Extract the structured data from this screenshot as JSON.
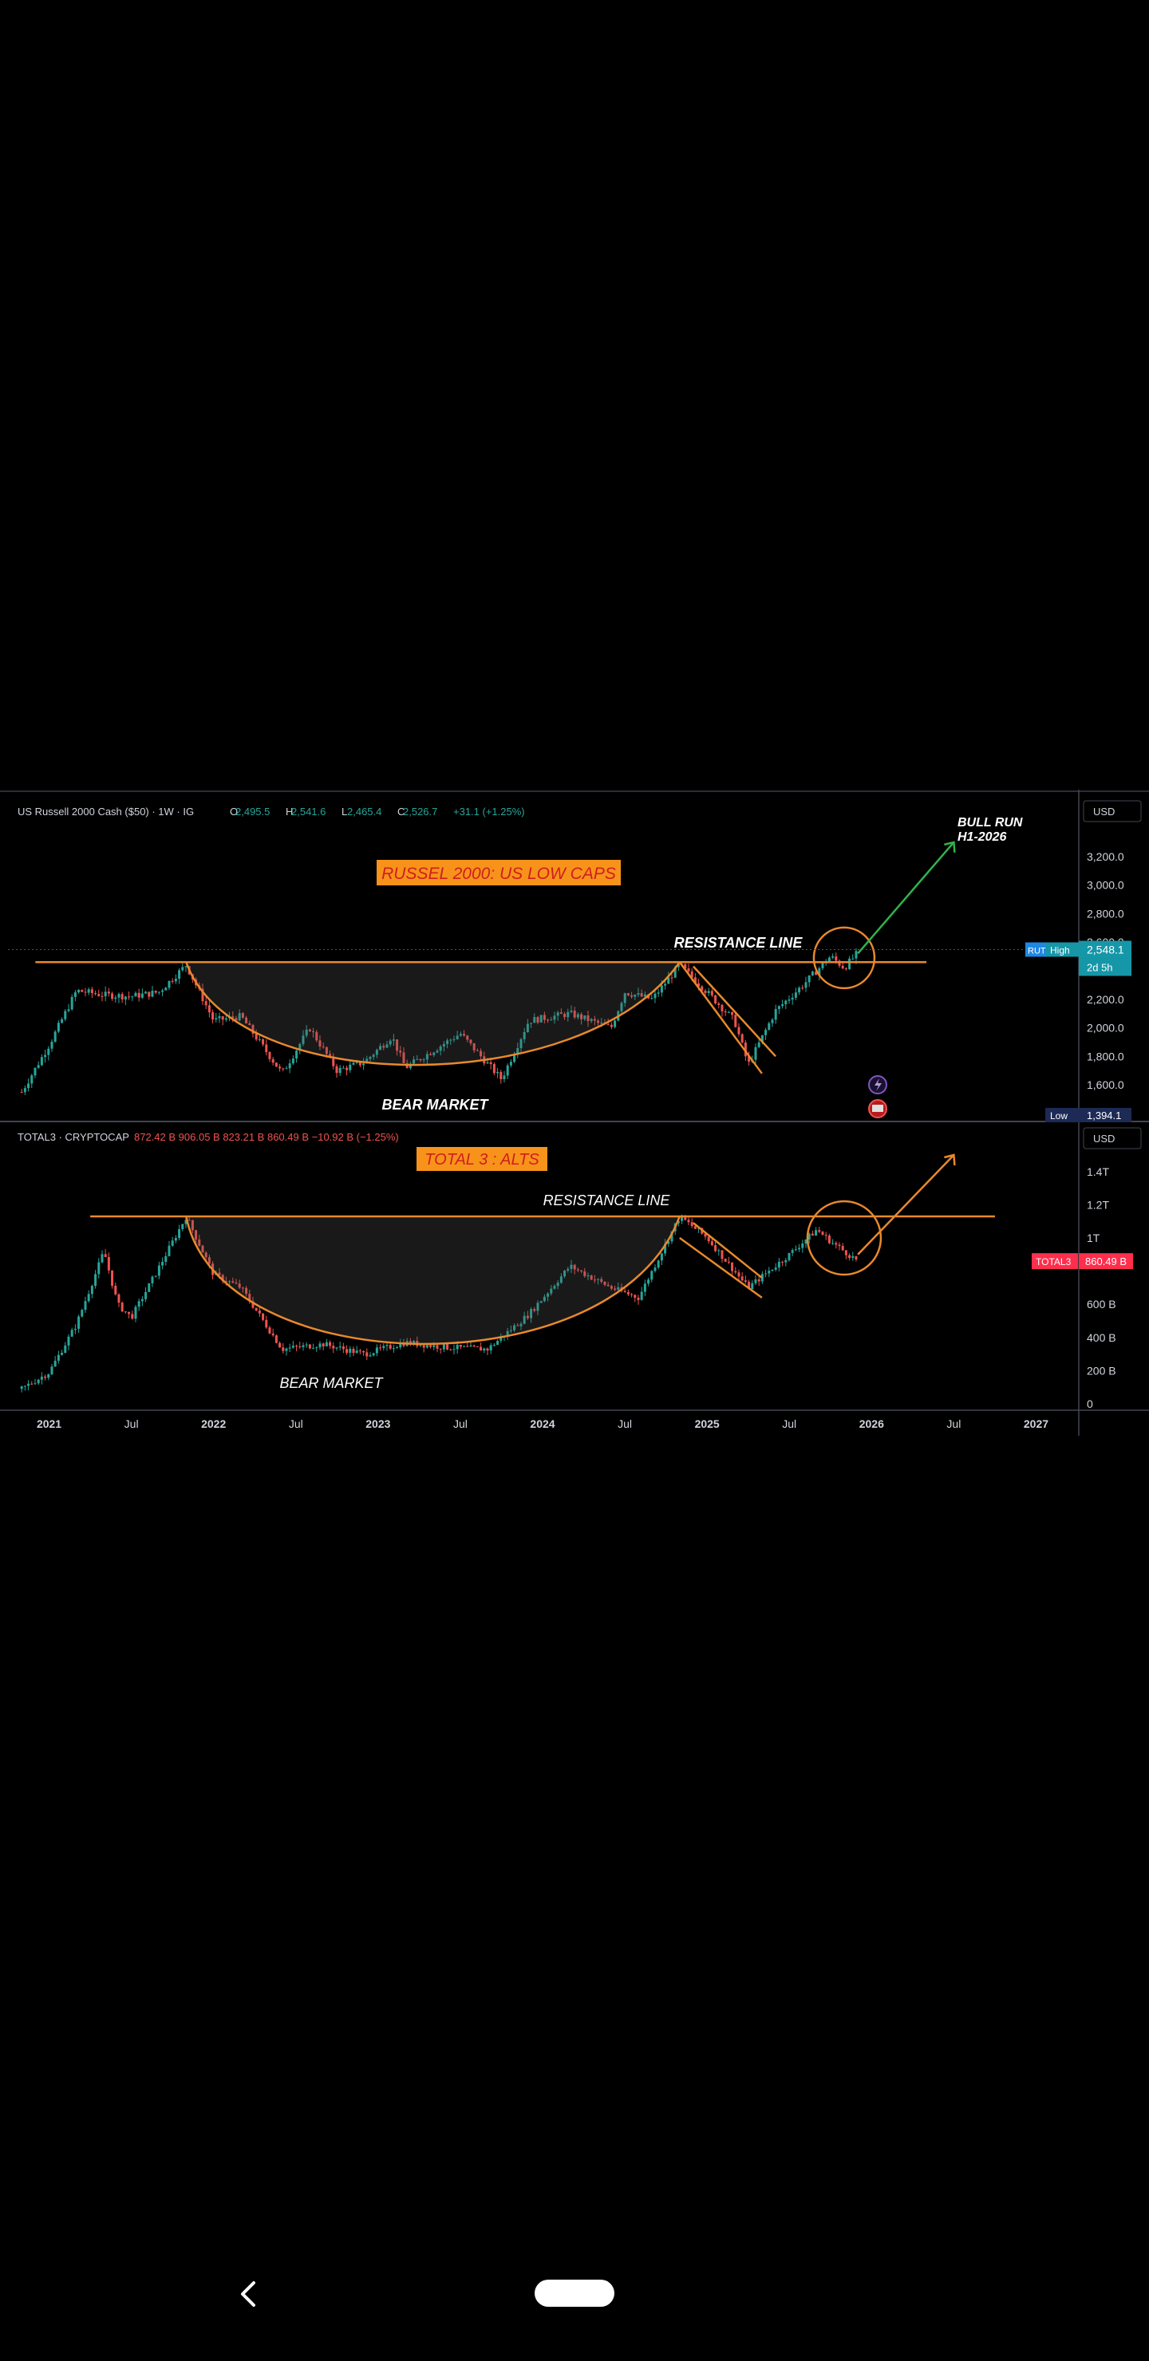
{
  "colors": {
    "background": "#000000",
    "bull": "#26a69a",
    "bear": "#ef5350",
    "pattern": "#e8892c",
    "label_fill": "#f7931a",
    "label_text": "#d11e1e",
    "arrow_green": "#2fb34a",
    "price_tag_blue": "#1e88e5",
    "price_tag_red": "#ff2e4d",
    "timer_tag": "#1597a8",
    "low_tag": "#1c2a55"
  },
  "chart_data": [
    {
      "type": "candlestick",
      "header": {
        "symbol": "US Russell 2000 Cash ($50) · 1W · IG",
        "o_label": "O",
        "o": "2,495.5",
        "h_label": "H",
        "h": "2,541.6",
        "l_label": "L",
        "l": "2,465.4",
        "c_label": "C",
        "c": "2,526.7",
        "change": "+31.1 (+1.25%)"
      },
      "currency": "USD",
      "y_ticks": [
        "1,600.0",
        "1,800.0",
        "2,000.0",
        "2,200.0",
        "2,600.0",
        "2,800.0",
        "3,000.0",
        "3,200.0"
      ],
      "ylim": [
        1394,
        3400
      ],
      "last_price": {
        "symbol": "RUT",
        "label": "High",
        "value": "2,548.1",
        "timer": "2d 5h"
      },
      "low_tag": {
        "label": "Low",
        "value": "1,394.1"
      },
      "annotations": {
        "title": "RUSSEL 2000: US LOW CAPS",
        "resistance": "RESISTANCE LINE",
        "bear_market": "BEAR MARKET",
        "bull_run_1": "BULL RUN",
        "bull_run_2": "H1-2026"
      },
      "resistance_level": 2460,
      "series": [
        {
          "date": "2020-11",
          "value": 1550
        },
        {
          "date": "2021-01",
          "value": 1880
        },
        {
          "date": "2021-03",
          "value": 2260
        },
        {
          "date": "2021-05",
          "value": 2230
        },
        {
          "date": "2021-07",
          "value": 2220
        },
        {
          "date": "2021-09",
          "value": 2250
        },
        {
          "date": "2021-11",
          "value": 2440
        },
        {
          "date": "2022-01",
          "value": 2050
        },
        {
          "date": "2022-03",
          "value": 2080
        },
        {
          "date": "2022-06",
          "value": 1680
        },
        {
          "date": "2022-08",
          "value": 2000
        },
        {
          "date": "2022-10",
          "value": 1700
        },
        {
          "date": "2022-12",
          "value": 1760
        },
        {
          "date": "2023-02",
          "value": 1940
        },
        {
          "date": "2023-03",
          "value": 1720
        },
        {
          "date": "2023-07",
          "value": 1960
        },
        {
          "date": "2023-10",
          "value": 1640
        },
        {
          "date": "2023-12",
          "value": 2050
        },
        {
          "date": "2024-03",
          "value": 2100
        },
        {
          "date": "2024-06",
          "value": 2000
        },
        {
          "date": "2024-07",
          "value": 2250
        },
        {
          "date": "2024-09",
          "value": 2200
        },
        {
          "date": "2024-11",
          "value": 2440
        },
        {
          "date": "2025-01",
          "value": 2250
        },
        {
          "date": "2025-03",
          "value": 2050
        },
        {
          "date": "2025-04",
          "value": 1740
        },
        {
          "date": "2025-06",
          "value": 2120
        },
        {
          "date": "2025-08",
          "value": 2300
        },
        {
          "date": "2025-10",
          "value": 2500
        },
        {
          "date": "2025-11",
          "value": 2420
        },
        {
          "date": "2025-12",
          "value": 2527
        }
      ]
    },
    {
      "type": "candlestick",
      "header": {
        "symbol": "TOTAL3 · CRYPTOCAP",
        "values": "872.42 B  906.05 B  823.21 B  860.49 B  −10.92 B (−1.25%)"
      },
      "currency": "USD",
      "y_ticks": [
        "0",
        "200 B",
        "400 B",
        "600 B",
        "1T",
        "1.2T",
        "1.4T"
      ],
      "ylim": [
        0,
        1500
      ],
      "last_price": {
        "symbol": "TOTAL3",
        "value": "860.49 B"
      },
      "annotations": {
        "title": "TOTAL 3 : ALTS",
        "resistance": "RESISTANCE LINE",
        "bear_market": "BEAR MARKET"
      },
      "resistance_level": 1130,
      "series": [
        {
          "date": "2020-11",
          "value": 90
        },
        {
          "date": "2021-01",
          "value": 190
        },
        {
          "date": "2021-03",
          "value": 480
        },
        {
          "date": "2021-05",
          "value": 920
        },
        {
          "date": "2021-06",
          "value": 600
        },
        {
          "date": "2021-07",
          "value": 520
        },
        {
          "date": "2021-09",
          "value": 820
        },
        {
          "date": "2021-11",
          "value": 1130
        },
        {
          "date": "2022-01",
          "value": 780
        },
        {
          "date": "2022-03",
          "value": 700
        },
        {
          "date": "2022-06",
          "value": 330
        },
        {
          "date": "2022-09",
          "value": 360
        },
        {
          "date": "2022-12",
          "value": 300
        },
        {
          "date": "2023-03",
          "value": 370
        },
        {
          "date": "2023-06",
          "value": 340
        },
        {
          "date": "2023-09",
          "value": 330
        },
        {
          "date": "2023-12",
          "value": 540
        },
        {
          "date": "2024-03",
          "value": 830
        },
        {
          "date": "2024-06",
          "value": 700
        },
        {
          "date": "2024-08",
          "value": 640
        },
        {
          "date": "2024-11",
          "value": 1130
        },
        {
          "date": "2025-01",
          "value": 1000
        },
        {
          "date": "2025-04",
          "value": 700
        },
        {
          "date": "2025-07",
          "value": 900
        },
        {
          "date": "2025-09",
          "value": 1050
        },
        {
          "date": "2025-10",
          "value": 980
        },
        {
          "date": "2025-12",
          "value": 860
        }
      ]
    }
  ],
  "x_axis": {
    "ticks": [
      {
        "label": "2021",
        "date": "2021-01",
        "bold": true
      },
      {
        "label": "Jul",
        "date": "2021-07",
        "bold": false
      },
      {
        "label": "2022",
        "date": "2022-01",
        "bold": true
      },
      {
        "label": "Jul",
        "date": "2022-07",
        "bold": false
      },
      {
        "label": "2023",
        "date": "2023-01",
        "bold": true
      },
      {
        "label": "Jul",
        "date": "2023-07",
        "bold": false
      },
      {
        "label": "2024",
        "date": "2024-01",
        "bold": true
      },
      {
        "label": "Jul",
        "date": "2024-07",
        "bold": false
      },
      {
        "label": "2025",
        "date": "2025-01",
        "bold": true
      },
      {
        "label": "Jul",
        "date": "2025-07",
        "bold": false
      },
      {
        "label": "2026",
        "date": "2026-01",
        "bold": true
      },
      {
        "label": "Jul",
        "date": "2026-07",
        "bold": false
      },
      {
        "label": "2027",
        "date": "2027-01",
        "bold": true
      }
    ],
    "range": [
      "2020-10",
      "2027-04"
    ]
  },
  "nav_bar": {
    "back_icon": "chevron-left-icon",
    "home_icon": "home-pill-icon"
  }
}
